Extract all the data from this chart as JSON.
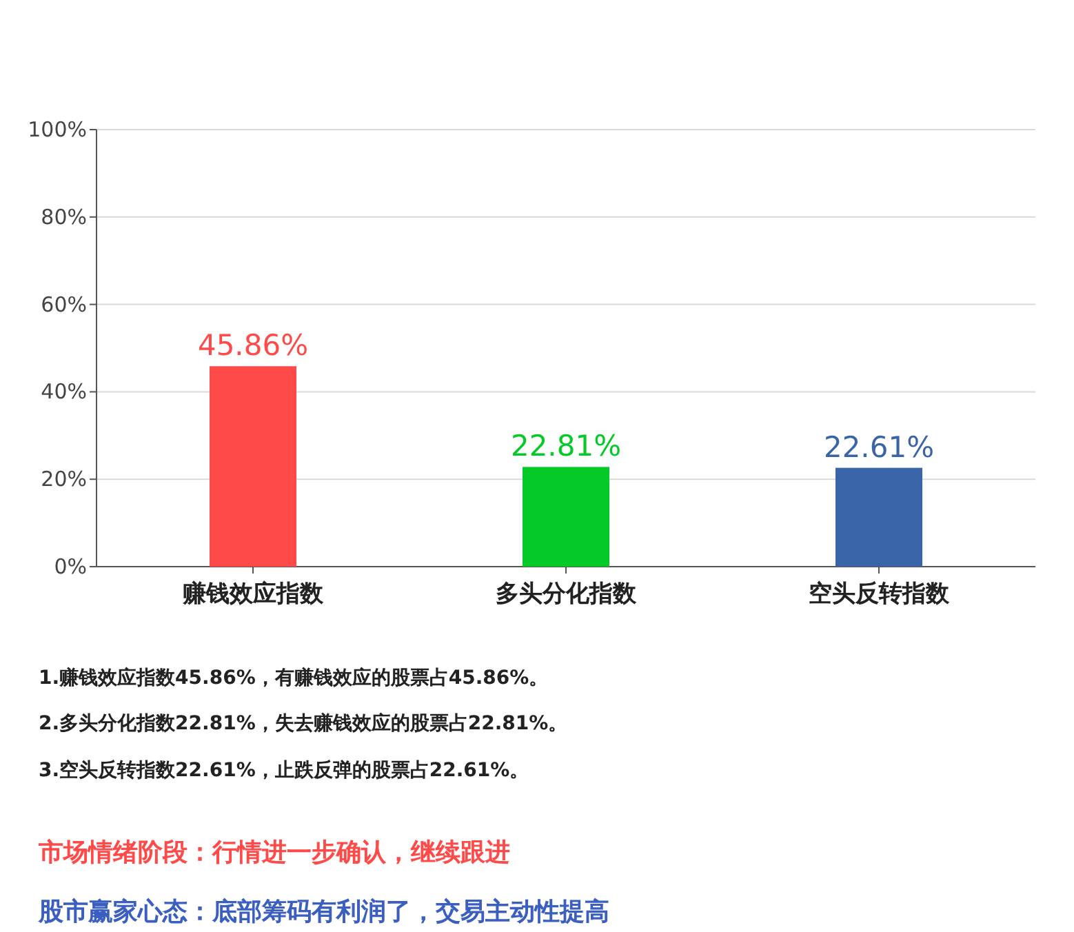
{
  "chart_data": {
    "type": "bar",
    "categories": [
      "赚钱效应指数",
      "多头分化指数",
      "空头反转指数"
    ],
    "values": [
      45.86,
      22.81,
      22.61
    ],
    "colors": [
      "#ff4a4a",
      "#05c926",
      "#3a64a8"
    ],
    "value_labels": [
      "45.86%",
      "22.81%",
      "22.61%"
    ],
    "ylim": [
      0,
      100
    ],
    "yticks": [
      {
        "value": 0,
        "label": "0%"
      },
      {
        "value": 20,
        "label": "20%"
      },
      {
        "value": 40,
        "label": "40%"
      },
      {
        "value": 60,
        "label": "60%"
      },
      {
        "value": 80,
        "label": "80%"
      },
      {
        "value": 100,
        "label": "100%"
      }
    ],
    "grid": "y",
    "annotations": [
      "1.赚钱效应指数45.86%，有赚钱效应的股票占45.86%。",
      "2.多头分化指数22.81%，失去赚钱效应的股票占22.81%。",
      "3.空头反转指数22.61%，止跌反弹的股票占22.61%。",
      "市场情绪阶段：行情进一步确认，继续跟进",
      "股市赢家心态：底部筹码有利润了，交易主动性提高"
    ]
  }
}
